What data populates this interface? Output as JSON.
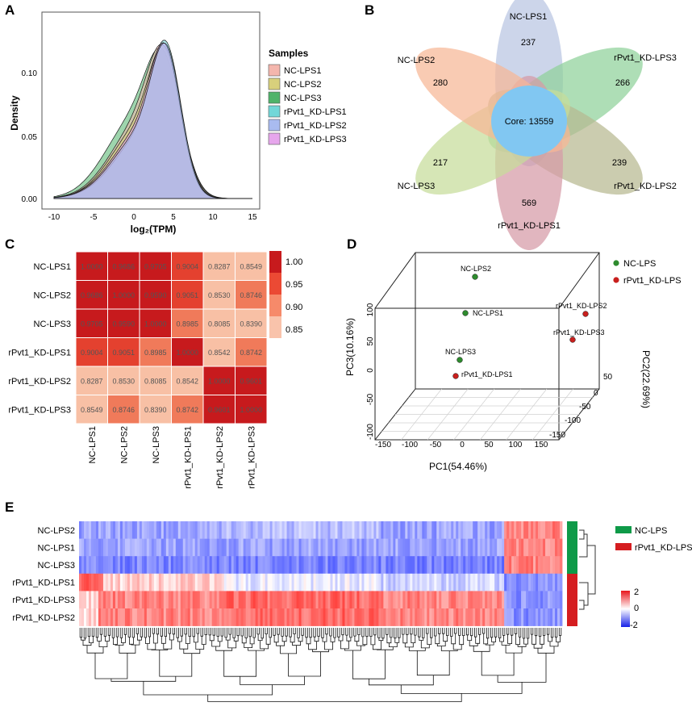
{
  "panels": {
    "A": {
      "letter": "A",
      "x_label": "log₂(TPM)",
      "y_label": "Density",
      "legend_title": "Samples",
      "samples": [
        {
          "name": "NC-LPS1",
          "color": "#f4b6ad"
        },
        {
          "name": "NC-LPS2",
          "color": "#d8d07c"
        },
        {
          "name": "NC-LPS3",
          "color": "#4fb36a"
        },
        {
          "name": "rPvt1_KD-LPS1",
          "color": "#72d7d8"
        },
        {
          "name": "rPvt1_KD-LPS2",
          "color": "#a9bbf0"
        },
        {
          "name": "rPvt1_KD-LPS3",
          "color": "#e6a6ec"
        }
      ],
      "x_ticks": [
        "-10",
        "-5",
        "0",
        "5",
        "10",
        "15"
      ],
      "y_ticks": [
        "0.00",
        "0.05",
        "0.10"
      ]
    },
    "B": {
      "letter": "B",
      "core_label": "Core: 13559",
      "petals": [
        {
          "name": "NC-LPS1",
          "count": "237",
          "color": "#b9c5e2"
        },
        {
          "name": "rPvt1_KD-LPS3",
          "count": "266",
          "color": "#8fd19a"
        },
        {
          "name": "rPvt1_KD-LPS2",
          "count": "239",
          "color": "#b7b890"
        },
        {
          "name": "rPvt1_KD-LPS1",
          "count": "569",
          "color": "#d59aa6"
        },
        {
          "name": "NC-LPS3",
          "count": "217",
          "color": "#c6dc9a"
        },
        {
          "name": "NC-LPS2",
          "count": "280",
          "color": "#f6b796"
        }
      ]
    },
    "C": {
      "letter": "C",
      "samples": [
        "NC-LPS1",
        "NC-LPS2",
        "NC-LPS3",
        "rPvt1_KD-LPS1",
        "rPvt1_KD-LPS2",
        "rPvt1_KD-LPS3"
      ],
      "matrix": [
        [
          "1.0000",
          "0.9686",
          "0.9705",
          "0.9004",
          "0.8287",
          "0.8549"
        ],
        [
          "0.9686",
          "1.0000",
          "0.9590",
          "0.9051",
          "0.8530",
          "0.8746"
        ],
        [
          "0.9705",
          "0.9590",
          "1.0000",
          "0.8985",
          "0.8085",
          "0.8390"
        ],
        [
          "0.9004",
          "0.9051",
          "0.8985",
          "1.0000",
          "0.8542",
          "0.8742"
        ],
        [
          "0.8287",
          "0.8530",
          "0.8085",
          "0.8542",
          "1.0000",
          "0.9601"
        ],
        [
          "0.8549",
          "0.8746",
          "0.8390",
          "0.8742",
          "0.9601",
          "1.0000"
        ]
      ],
      "scale_ticks": [
        "1.00",
        "0.95",
        "0.90",
        "0.85"
      ]
    },
    "D": {
      "letter": "D",
      "axis_x": "PC1(54.46%)",
      "axis_y": "PC3(10.16%)",
      "axis_z": "PC2(22.69%)",
      "x_ticks": [
        "-150",
        "-100",
        "-50",
        "0",
        "50",
        "100",
        "150"
      ],
      "y_ticks": [
        "100",
        "50",
        "0",
        "-50",
        "-100"
      ],
      "z_ticks": [
        "50",
        "0",
        "-50",
        "-100",
        "-150"
      ],
      "legend": [
        {
          "name": "NC-LPS",
          "color": "#2e8b2e"
        },
        {
          "name": "rPvt1_KD-LPS",
          "color": "#c8201e"
        }
      ],
      "points": [
        {
          "label": "NC-LPS2",
          "group": 0
        },
        {
          "label": "NC-LPS1",
          "group": 0
        },
        {
          "label": "NC-LPS3",
          "group": 0
        },
        {
          "label": "rPvt1_KD-LPS1",
          "group": 1
        },
        {
          "label": "rPvt1_KD-LPS2",
          "group": 1
        },
        {
          "label": "rPvt1_KD-LPS3",
          "group": 1
        }
      ]
    },
    "E": {
      "letter": "E",
      "rows": [
        "NC-LPS2",
        "NC-LPS1",
        "NC-LPS3",
        "rPvt1_KD-LPS1",
        "rPvt1_KD-LPS3",
        "rPvt1_KD-LPS2"
      ],
      "groups": [
        {
          "name": "NC-LPS",
          "color": "#0e9a48"
        },
        {
          "name": "rPvt1_KD-LPS",
          "color": "#d51d20"
        }
      ],
      "scale_ticks": [
        "2",
        "0",
        "-2"
      ]
    }
  }
}
